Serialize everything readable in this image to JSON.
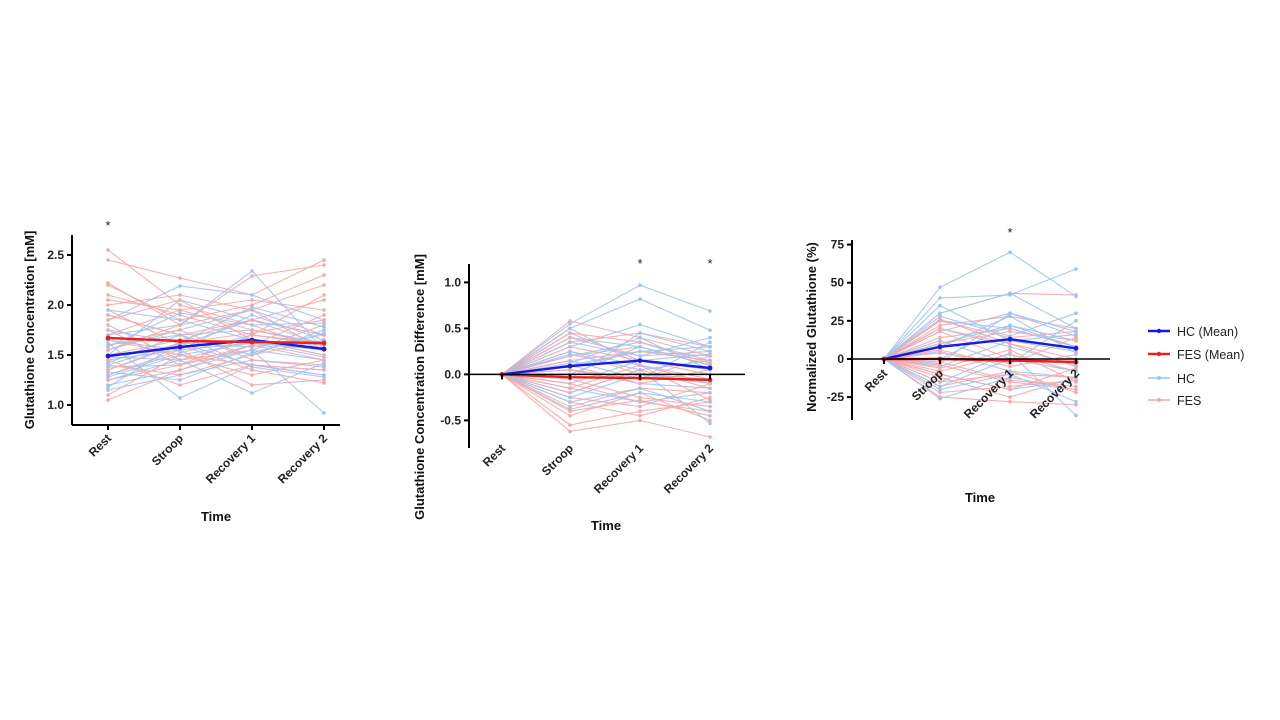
{
  "colors": {
    "hc_mean": "#1a1adf",
    "fes_mean": "#e8201e",
    "hc": "#9ec3f0",
    "fes": "#f4a9a8"
  },
  "legend": {
    "items": [
      {
        "label": "HC (Mean)",
        "series": "hc_mean"
      },
      {
        "label": "FES (Mean)",
        "series": "fes_mean"
      },
      {
        "label": "HC",
        "series": "hc"
      },
      {
        "label": "FES",
        "series": "fes"
      }
    ],
    "placement": "right"
  },
  "chart_data": [
    {
      "type": "line",
      "title": "",
      "xlabel": "Time",
      "ylabel": "Glutathione Concentration [mM]",
      "categories": [
        "Rest",
        "Stroop",
        "Recovery 1",
        "Recovery 2"
      ],
      "ylim": [
        0.8,
        2.7
      ],
      "yticks": [
        1.0,
        1.5,
        2.0,
        2.5
      ],
      "ytick_labels": [
        "1.0",
        "1.5",
        "2.0",
        "2.5"
      ],
      "zero_line": false,
      "annotations": [
        {
          "text": "*",
          "category": "Rest"
        }
      ],
      "series": [
        {
          "name": "HC (Mean)",
          "key": "hc_mean",
          "values": [
            1.49,
            1.58,
            1.65,
            1.56
          ]
        },
        {
          "name": "FES (Mean)",
          "key": "fes_mean",
          "values": [
            1.67,
            1.64,
            1.63,
            1.62
          ]
        }
      ],
      "individual": {
        "hc": [
          [
            1.2,
            1.35,
            1.55,
            1.45
          ],
          [
            1.3,
            1.52,
            1.7,
            1.62
          ],
          [
            1.4,
            1.62,
            1.58,
            1.7
          ],
          [
            1.25,
            1.45,
            1.65,
            1.5
          ],
          [
            1.55,
            1.75,
            1.95,
            1.7
          ],
          [
            1.35,
            1.6,
            1.85,
            1.6
          ],
          [
            1.45,
            1.55,
            1.62,
            1.48
          ],
          [
            1.6,
            1.7,
            1.75,
            1.62
          ],
          [
            1.15,
            1.3,
            1.45,
            1.38
          ],
          [
            1.85,
            2.19,
            2.1,
            1.85
          ],
          [
            1.5,
            2.05,
            1.85,
            1.7
          ],
          [
            1.7,
            1.8,
            2.34,
            1.55
          ],
          [
            1.62,
            1.07,
            1.4,
            1.3
          ],
          [
            1.38,
            1.4,
            1.55,
            0.92
          ],
          [
            1.9,
            1.7,
            1.5,
            1.75
          ],
          [
            1.28,
            1.5,
            1.62,
            1.55
          ],
          [
            1.75,
            1.62,
            1.4,
            1.35
          ],
          [
            1.18,
            1.62,
            1.98,
            1.78
          ],
          [
            1.48,
            1.45,
            1.12,
            1.42
          ],
          [
            1.95,
            1.85,
            1.65,
            1.6
          ],
          [
            1.33,
            1.25,
            1.52,
            1.72
          ],
          [
            1.58,
            1.92,
            1.8,
            1.82
          ],
          [
            1.42,
            1.7,
            1.38,
            1.28
          ],
          [
            1.65,
            1.55,
            1.9,
            1.65
          ]
        ],
        "fes": [
          [
            2.55,
            2.0,
            1.8,
            1.55
          ],
          [
            2.45,
            2.27,
            2.1,
            2.45
          ],
          [
            2.22,
            1.8,
            2.29,
            2.4
          ],
          [
            2.1,
            1.9,
            1.7,
            1.6
          ],
          [
            2.0,
            2.1,
            1.95,
            2.2
          ],
          [
            1.05,
            1.35,
            1.6,
            1.45
          ],
          [
            1.1,
            1.5,
            1.4,
            1.3
          ],
          [
            1.25,
            1.4,
            1.7,
            2.1
          ],
          [
            1.95,
            1.6,
            1.35,
            1.22
          ],
          [
            1.8,
            1.45,
            1.55,
            1.8
          ],
          [
            1.7,
            1.95,
            2.05,
            1.95
          ],
          [
            1.6,
            1.75,
            1.45,
            1.4
          ],
          [
            1.5,
            1.65,
            1.85,
            1.7
          ],
          [
            1.85,
            2.05,
            1.65,
            1.5
          ],
          [
            1.4,
            1.3,
            1.5,
            1.65
          ],
          [
            1.3,
            1.55,
            1.2,
            1.25
          ],
          [
            2.2,
            1.85,
            2.0,
            2.3
          ],
          [
            1.75,
            1.4,
            1.6,
            1.9
          ],
          [
            1.55,
            1.8,
            1.95,
            1.55
          ],
          [
            1.65,
            1.5,
            1.3,
            1.45
          ],
          [
            1.9,
            1.7,
            1.85,
            2.05
          ],
          [
            1.45,
            1.2,
            1.4,
            1.35
          ],
          [
            2.05,
            1.95,
            1.75,
            1.6
          ],
          [
            1.35,
            1.62,
            1.72,
            1.85
          ]
        ]
      }
    },
    {
      "type": "line",
      "title": "",
      "xlabel": "Time",
      "ylabel": "Glutathione Concentration Difference [mM]",
      "categories": [
        "Rest",
        "Stroop",
        "Recovery 1",
        "Recovery 2"
      ],
      "ylim": [
        -0.8,
        1.2
      ],
      "yticks": [
        -0.5,
        0.0,
        0.5,
        1.0
      ],
      "ytick_labels": [
        "-0.5",
        "0.0",
        "0.5",
        "1.0"
      ],
      "zero_line": true,
      "annotations": [
        {
          "text": "*",
          "category": "Recovery 1"
        },
        {
          "text": "*",
          "category": "Recovery 2"
        }
      ],
      "series": [
        {
          "name": "HC (Mean)",
          "key": "hc_mean",
          "values": [
            0.0,
            0.09,
            0.15,
            0.07
          ]
        },
        {
          "name": "FES (Mean)",
          "key": "fes_mean",
          "values": [
            0.0,
            -0.03,
            -0.04,
            -0.06
          ]
        }
      ],
      "individual": {
        "hc": [
          [
            0,
            0.55,
            0.97,
            0.69
          ],
          [
            0,
            0.5,
            0.82,
            0.48
          ],
          [
            0,
            0.3,
            0.54,
            0.3
          ],
          [
            0,
            0.2,
            0.35,
            0.15
          ],
          [
            0,
            0.1,
            0.25,
            0.2
          ],
          [
            0,
            -0.1,
            0.15,
            0.05
          ],
          [
            0,
            0.05,
            -0.1,
            -0.15
          ],
          [
            0,
            -0.38,
            -0.2,
            -0.3
          ],
          [
            0,
            -0.2,
            0.05,
            -0.53
          ],
          [
            0,
            0.4,
            0.3,
            0.1
          ],
          [
            0,
            -0.05,
            0.45,
            0.25
          ],
          [
            0,
            0.15,
            -0.05,
            0.35
          ],
          [
            0,
            0.25,
            0.1,
            -0.05
          ],
          [
            0,
            -0.3,
            -0.15,
            -0.4
          ],
          [
            0,
            0.35,
            0.2,
            0.4
          ],
          [
            0,
            0.0,
            0.3,
            0.1
          ],
          [
            0,
            -0.15,
            -0.3,
            -0.2
          ],
          [
            0,
            0.45,
            0.15,
            0.22
          ],
          [
            0,
            0.12,
            0.4,
            0.05
          ],
          [
            0,
            -0.25,
            0.0,
            -0.1
          ],
          [
            0,
            0.22,
            0.05,
            0.15
          ],
          [
            0,
            0.08,
            0.25,
            0.3
          ]
        ],
        "fes": [
          [
            0,
            0.58,
            0.4,
            0.2
          ],
          [
            0,
            0.5,
            0.1,
            -0.1
          ],
          [
            0,
            -0.62,
            -0.5,
            -0.68
          ],
          [
            0,
            -0.55,
            -0.4,
            -0.3
          ],
          [
            0,
            0.35,
            0.45,
            0.3
          ],
          [
            0,
            -0.45,
            -0.2,
            -0.5
          ],
          [
            0,
            0.2,
            0.3,
            0.1
          ],
          [
            0,
            -0.3,
            -0.45,
            -0.25
          ],
          [
            0,
            0.1,
            -0.1,
            0.05
          ],
          [
            0,
            -0.2,
            0.05,
            -0.15
          ],
          [
            0,
            0.4,
            0.2,
            0.25
          ],
          [
            0,
            -0.1,
            -0.3,
            -0.4
          ],
          [
            0,
            0.25,
            0.0,
            -0.05
          ],
          [
            0,
            -0.35,
            -0.15,
            -0.2
          ],
          [
            0,
            0.15,
            0.25,
            0.15
          ],
          [
            0,
            -0.05,
            -0.25,
            -0.35
          ],
          [
            0,
            0.3,
            0.15,
            0.0
          ],
          [
            0,
            -0.25,
            -0.35,
            -0.1
          ],
          [
            0,
            0.05,
            -0.05,
            0.2
          ],
          [
            0,
            -0.15,
            0.1,
            -0.28
          ],
          [
            0,
            0.45,
            0.35,
            0.12
          ],
          [
            0,
            -0.4,
            -0.28,
            -0.45
          ]
        ]
      }
    },
    {
      "type": "line",
      "title": "",
      "xlabel": "Time",
      "ylabel": "Normalized Glutathione (%)",
      "categories": [
        "Rest",
        "Stroop",
        "Recovery 1",
        "Recovery 2"
      ],
      "ylim": [
        -40,
        78
      ],
      "yticks": [
        -25,
        0,
        25,
        50,
        75
      ],
      "ytick_labels": [
        "-25",
        "0",
        "25",
        "50",
        "75"
      ],
      "zero_line": true,
      "annotations": [
        {
          "text": "*",
          "category": "Recovery 1"
        }
      ],
      "series": [
        {
          "name": "HC (Mean)",
          "key": "hc_mean",
          "values": [
            0,
            8,
            13,
            7
          ]
        },
        {
          "name": "FES (Mean)",
          "key": "fes_mean",
          "values": [
            0,
            0,
            -1,
            -2
          ]
        }
      ],
      "individual": {
        "hc": [
          [
            0,
            47,
            70,
            41
          ],
          [
            0,
            40,
            42,
            59
          ],
          [
            0,
            30,
            43,
            20
          ],
          [
            0,
            18,
            30,
            15
          ],
          [
            0,
            10,
            22,
            12
          ],
          [
            0,
            -5,
            12,
            5
          ],
          [
            0,
            5,
            -8,
            -12
          ],
          [
            0,
            -26,
            -12,
            -20
          ],
          [
            0,
            -15,
            4,
            -37
          ],
          [
            0,
            25,
            20,
            8
          ],
          [
            0,
            -3,
            30,
            18
          ],
          [
            0,
            12,
            -3,
            25
          ],
          [
            0,
            20,
            8,
            -4
          ],
          [
            0,
            -20,
            -10,
            -28
          ],
          [
            0,
            28,
            15,
            30
          ],
          [
            0,
            0,
            22,
            8
          ],
          [
            0,
            -10,
            -20,
            -14
          ],
          [
            0,
            35,
            12,
            16
          ],
          [
            0,
            8,
            28,
            4
          ],
          [
            0,
            -18,
            0,
            -8
          ]
        ],
        "fes": [
          [
            0,
            30,
            43,
            42
          ],
          [
            0,
            26,
            10,
            -5
          ],
          [
            0,
            -25,
            -28,
            -30
          ],
          [
            0,
            -22,
            -18,
            -14
          ],
          [
            0,
            22,
            28,
            20
          ],
          [
            0,
            -18,
            -8,
            -22
          ],
          [
            0,
            14,
            20,
            8
          ],
          [
            0,
            -12,
            -25,
            -12
          ],
          [
            0,
            6,
            -5,
            3
          ],
          [
            0,
            -8,
            3,
            -8
          ],
          [
            0,
            25,
            14,
            18
          ],
          [
            0,
            -4,
            -15,
            -20
          ],
          [
            0,
            18,
            0,
            -3
          ],
          [
            0,
            -15,
            -10,
            -12
          ],
          [
            0,
            10,
            18,
            12
          ],
          [
            0,
            -2,
            -14,
            -18
          ],
          [
            0,
            20,
            10,
            0
          ],
          [
            0,
            -10,
            -20,
            -6
          ],
          [
            0,
            4,
            -3,
            14
          ],
          [
            0,
            -6,
            6,
            -15
          ]
        ]
      }
    }
  ]
}
